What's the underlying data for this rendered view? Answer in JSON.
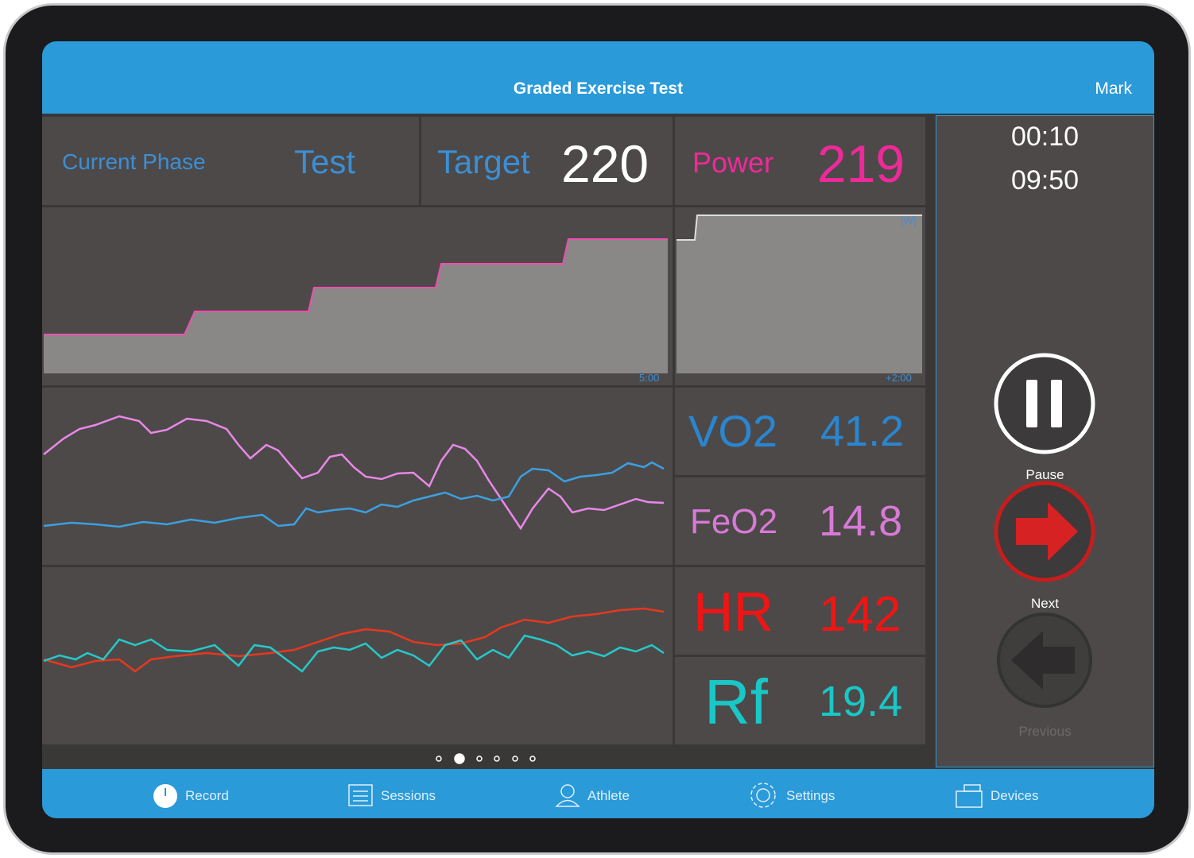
{
  "header": {
    "title": "Graded Exercise Test",
    "user": "Mark"
  },
  "phase": {
    "label": "Current Phase",
    "value": "Test"
  },
  "target": {
    "label": "Target",
    "value": 220
  },
  "power": {
    "label": "Power",
    "value": 219
  },
  "timers": {
    "elapsed": "00:10",
    "remaining": "09:50"
  },
  "power_chart": {
    "time_label": "5:00"
  },
  "preview_chart": {
    "unit": "[W]",
    "time_label": "+2:00"
  },
  "metrics": [
    {
      "label": "VO2",
      "value": 41.2
    },
    {
      "label": "FeO2",
      "value": 14.8
    },
    {
      "label": "HR",
      "value": 142
    },
    {
      "label": "Rf",
      "value": 19.4
    }
  ],
  "controls": {
    "pause": "Pause",
    "next": "Next",
    "previous": "Previous"
  },
  "nav": [
    "Record",
    "Sessions",
    "Athlete",
    "Settings",
    "Devices"
  ]
}
